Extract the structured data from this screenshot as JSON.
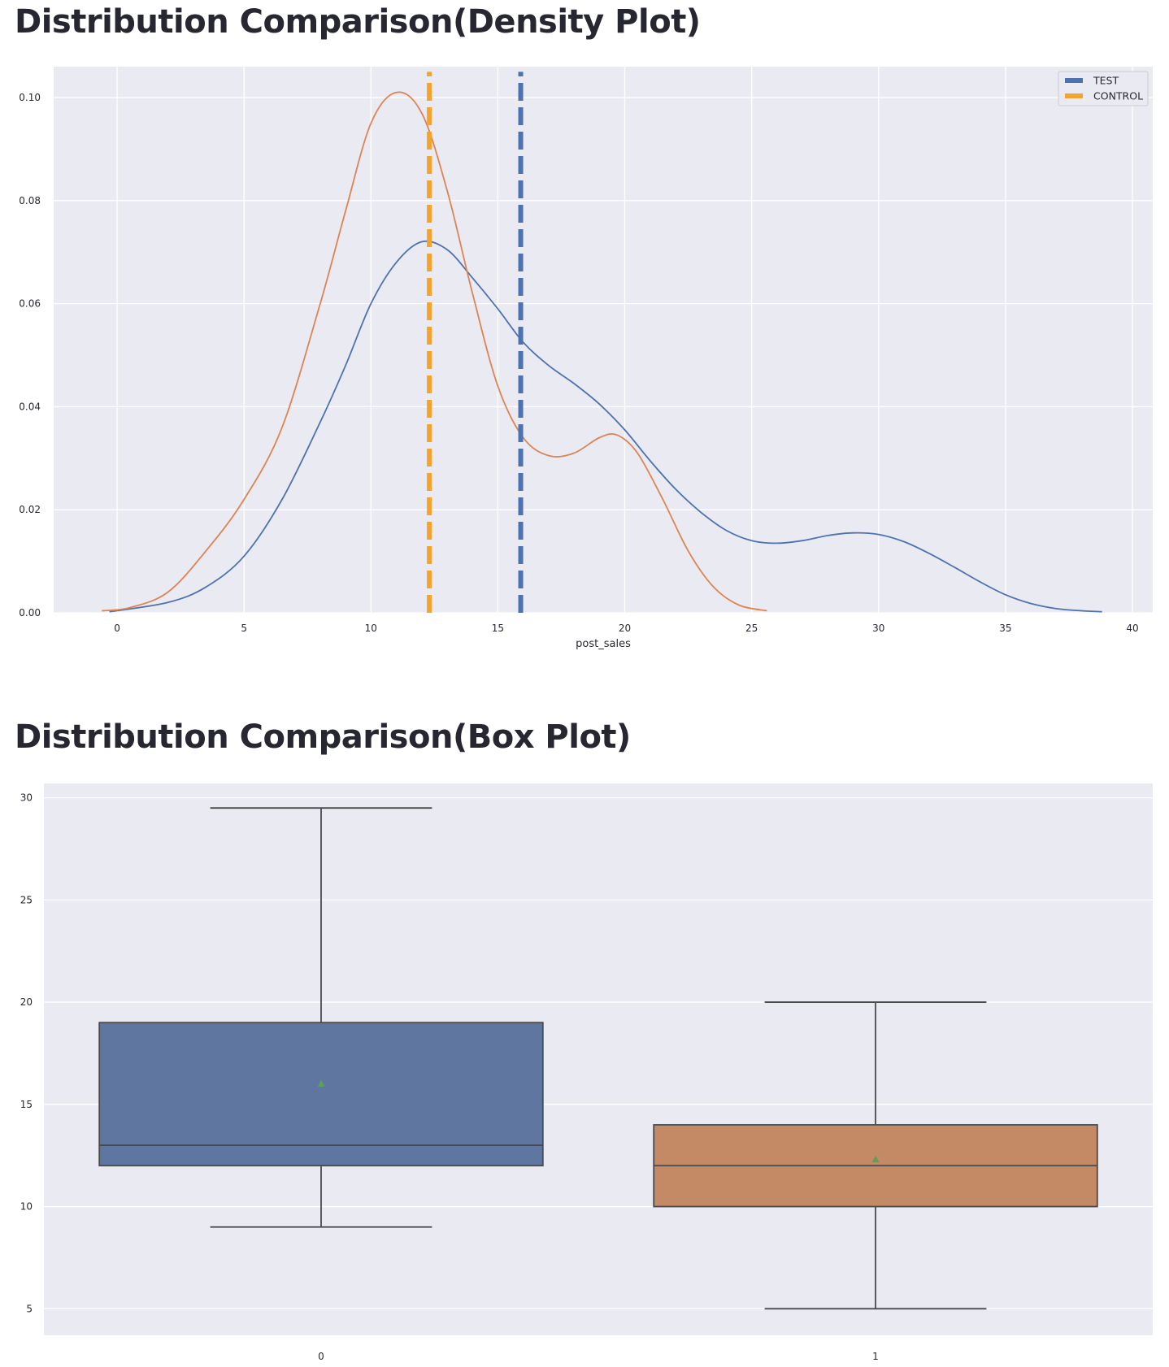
{
  "titles": {
    "density": "Distribution Comparison(Density Plot)",
    "box": "Distribution Comparison(Box Plot)"
  },
  "colors": {
    "test": "#4c72b0",
    "control": "#dd8452",
    "test_mean_line": "#4c72b0",
    "control_mean_line": "#f4a32c",
    "background": "#eaeaf2",
    "grid": "#ffffff",
    "box_test": "#5f76a0",
    "box_control": "#c48a66",
    "mean_marker": "#5aa05a"
  },
  "chart_data": [
    {
      "type": "line",
      "title": "",
      "xlabel": "post_sales",
      "ylabel": "",
      "xlim": [
        -2.5,
        40.8
      ],
      "ylim": [
        0,
        0.106
      ],
      "xticks": [
        0,
        5,
        10,
        15,
        20,
        25,
        30,
        35,
        40
      ],
      "yticks": [
        0.0,
        0.02,
        0.04,
        0.06,
        0.08,
        0.1
      ],
      "ytick_labels": [
        "0.00",
        "0.02",
        "0.04",
        "0.06",
        "0.08",
        "0.10"
      ],
      "grid": true,
      "legend": "top-right",
      "series": [
        {
          "name": "TEST",
          "x": [
            -0.3,
            2,
            3.5,
            5,
            6.5,
            8,
            9,
            10,
            11,
            12,
            13,
            14,
            15,
            16,
            17,
            18,
            19,
            20,
            21,
            22,
            23,
            24,
            25,
            26,
            27,
            28,
            29,
            30,
            31,
            32,
            33,
            34,
            35,
            36,
            37,
            38,
            38.8
          ],
          "y": [
            0.0002,
            0.002,
            0.005,
            0.011,
            0.022,
            0.037,
            0.048,
            0.06,
            0.068,
            0.072,
            0.0705,
            0.065,
            0.059,
            0.0525,
            0.048,
            0.0445,
            0.0405,
            0.0355,
            0.0295,
            0.024,
            0.0195,
            0.016,
            0.014,
            0.0135,
            0.014,
            0.015,
            0.0155,
            0.0152,
            0.0138,
            0.0115,
            0.0088,
            0.006,
            0.0035,
            0.0018,
            0.0008,
            0.0004,
            0.0002
          ]
        },
        {
          "name": "CONTROL",
          "x": [
            -0.6,
            0.5,
            2,
            3.5,
            5,
            6.5,
            8,
            9,
            10,
            11,
            12,
            13,
            14,
            15,
            16,
            17,
            18,
            19,
            19.7,
            20.5,
            21.5,
            22.5,
            23.5,
            24.5,
            25.6
          ],
          "y": [
            0.0004,
            0.001,
            0.004,
            0.012,
            0.022,
            0.036,
            0.06,
            0.078,
            0.095,
            0.101,
            0.097,
            0.082,
            0.062,
            0.044,
            0.034,
            0.0305,
            0.031,
            0.034,
            0.0345,
            0.031,
            0.022,
            0.012,
            0.005,
            0.0015,
            0.0004
          ]
        },
        {
          "name": "TEST mean",
          "x": [
            15.9,
            15.9
          ],
          "y": [
            0,
            0.105
          ]
        },
        {
          "name": "CONTROL mean",
          "x": [
            12.3,
            12.3
          ],
          "y": [
            0,
            0.105
          ]
        }
      ],
      "legend_entries": [
        "TEST",
        "CONTROL"
      ]
    },
    {
      "type": "box",
      "title": "",
      "xlabel": "",
      "ylabel": "",
      "categories": [
        "0",
        "1"
      ],
      "ylim": [
        3.7,
        30.7
      ],
      "yticks": [
        5,
        10,
        15,
        20,
        25,
        30
      ],
      "grid": true,
      "boxes": [
        {
          "category": "0",
          "whisker_low": 9,
          "q1": 12,
          "median": 13,
          "q3": 19,
          "whisker_high": 29.5,
          "mean": 16
        },
        {
          "category": "1",
          "whisker_low": 5,
          "q1": 10,
          "median": 12,
          "q3": 14,
          "whisker_high": 20,
          "mean": 12.3
        }
      ]
    }
  ]
}
